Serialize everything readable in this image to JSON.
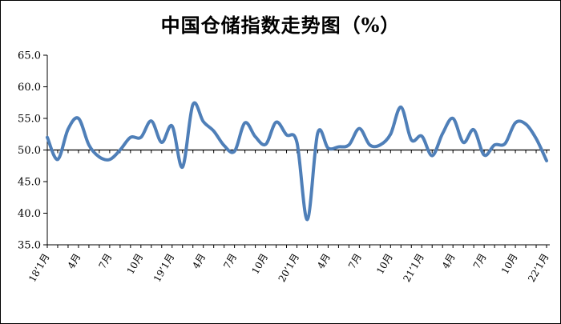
{
  "chart_data": {
    "type": "line",
    "title": "中国仓储指数走势图（%）",
    "ylim": [
      35.0,
      65.0
    ],
    "yticks": [
      "35.0",
      "40.0",
      "45.0",
      "50.0",
      "55.0",
      "60.0",
      "65.0"
    ],
    "ytick_values": [
      35,
      40,
      45,
      50,
      55,
      60,
      65
    ],
    "reference_line": 50.0,
    "series_color": "#4f7fb8",
    "grid": false,
    "x_tick_labels": [
      {
        "index": 0,
        "label": "18’1月"
      },
      {
        "index": 3,
        "label": "4月"
      },
      {
        "index": 6,
        "label": "7月"
      },
      {
        "index": 9,
        "label": "10月"
      },
      {
        "index": 12,
        "label": "19’1月"
      },
      {
        "index": 15,
        "label": "4月"
      },
      {
        "index": 18,
        "label": "7月"
      },
      {
        "index": 21,
        "label": "10月"
      },
      {
        "index": 24,
        "label": "20’1月"
      },
      {
        "index": 27,
        "label": "4月"
      },
      {
        "index": 30,
        "label": "7月"
      },
      {
        "index": 33,
        "label": "10月"
      },
      {
        "index": 36,
        "label": "21’1月"
      },
      {
        "index": 39,
        "label": "4月"
      },
      {
        "index": 42,
        "label": "7月"
      },
      {
        "index": 45,
        "label": "10月"
      },
      {
        "index": 48,
        "label": "22’1月"
      }
    ],
    "x": [
      "2018-01",
      "2018-02",
      "2018-03",
      "2018-04",
      "2018-05",
      "2018-06",
      "2018-07",
      "2018-08",
      "2018-09",
      "2018-10",
      "2018-11",
      "2018-12",
      "2019-01",
      "2019-02",
      "2019-03",
      "2019-04",
      "2019-05",
      "2019-06",
      "2019-07",
      "2019-08",
      "2019-09",
      "2019-10",
      "2019-11",
      "2019-12",
      "2020-01",
      "2020-02",
      "2020-03",
      "2020-04",
      "2020-05",
      "2020-06",
      "2020-07",
      "2020-08",
      "2020-09",
      "2020-10",
      "2020-11",
      "2020-12",
      "2021-01",
      "2021-02",
      "2021-03",
      "2021-04",
      "2021-05",
      "2021-06",
      "2021-07",
      "2021-08",
      "2021-09",
      "2021-10",
      "2021-11",
      "2021-12",
      "2022-01"
    ],
    "series": [
      {
        "values": [
          52.0,
          48.5,
          53.3,
          55.0,
          50.8,
          48.9,
          48.5,
          50.0,
          52.0,
          52.0,
          54.6,
          51.2,
          53.8,
          47.3,
          57.2,
          54.5,
          53.0,
          50.7,
          49.8,
          54.3,
          52.1,
          50.9,
          54.4,
          52.4,
          51.2,
          39.0,
          52.7,
          50.3,
          50.5,
          50.8,
          53.4,
          50.8,
          50.8,
          52.5,
          56.8,
          51.6,
          52.2,
          49.1,
          52.6,
          55.0,
          51.2,
          53.2,
          49.2,
          50.8,
          51.0,
          54.3,
          54.1,
          51.8,
          48.3
        ]
      }
    ]
  }
}
